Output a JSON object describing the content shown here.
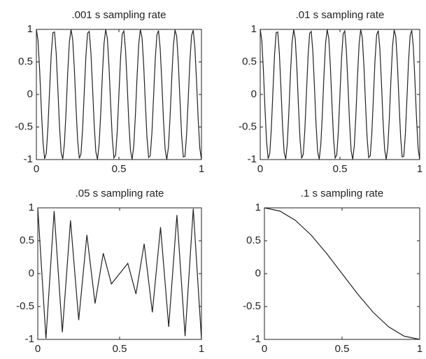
{
  "chart_data": [
    {
      "type": "line",
      "title": ".001 s sampling rate",
      "color": "#222222",
      "xlim": [
        0,
        1
      ],
      "ylim": [
        -1,
        1
      ],
      "xticks": [
        0,
        0.5,
        1
      ],
      "yticks": [
        -1,
        -0.5,
        0,
        0.5,
        1
      ],
      "x": [
        0,
        0.01,
        0.02,
        0.03,
        0.04,
        0.05,
        0.06,
        0.07,
        0.08,
        0.09,
        0.1,
        0.11,
        0.12,
        0.13,
        0.14,
        0.15,
        0.16,
        0.17,
        0.18,
        0.19,
        0.2,
        0.21,
        0.22,
        0.23,
        0.24,
        0.25,
        0.26,
        0.27,
        0.28,
        0.29,
        0.3,
        0.31,
        0.32,
        0.33,
        0.34,
        0.35,
        0.36,
        0.37,
        0.38,
        0.39,
        0.4,
        0.41,
        0.42,
        0.43,
        0.44,
        0.45,
        0.46,
        0.47,
        0.48,
        0.49,
        0.5,
        0.51,
        0.52,
        0.53,
        0.54,
        0.55,
        0.56,
        0.57,
        0.58,
        0.59,
        0.6,
        0.61,
        0.62,
        0.63,
        0.64,
        0.65,
        0.66,
        0.67,
        0.68,
        0.69,
        0.7,
        0.71,
        0.72,
        0.73,
        0.74,
        0.75,
        0.76,
        0.77,
        0.78,
        0.79,
        0.8,
        0.81,
        0.82,
        0.83,
        0.84,
        0.85,
        0.86,
        0.87,
        0.88,
        0.89,
        0.9,
        0.91,
        0.92,
        0.93,
        0.94,
        0.95,
        0.96,
        0.97,
        0.98,
        0.99,
        1
      ],
      "values": [
        1,
        0.827,
        0.368,
        -0.218,
        -0.729,
        -0.988,
        -0.905,
        -0.509,
        0.063,
        0.613,
        0.951,
        0.96,
        0.637,
        0.094,
        -0.482,
        -0.891,
        -0.992,
        -0.75,
        -0.249,
        0.339,
        0.809,
        1,
        0.844,
        0.397,
        -0.187,
        -0.707,
        -0.982,
        -0.918,
        -0.536,
        0.031,
        0.588,
        0.941,
        0.969,
        0.661,
        0.125,
        -0.454,
        -0.876,
        -0.996,
        -0.771,
        -0.279,
        0.309,
        0.79,
        0.998,
        0.861,
        0.426,
        -0.156,
        -0.685,
        -0.976,
        -0.93,
        -0.562,
        0,
        0.562,
        0.93,
        0.976,
        0.685,
        0.156,
        -0.426,
        -0.861,
        -0.998,
        -0.79,
        -0.309,
        0.279,
        0.771,
        0.996,
        0.876,
        0.454,
        -0.125,
        -0.661,
        -0.969,
        -0.941,
        -0.588,
        -0.031,
        0.536,
        0.918,
        0.982,
        0.707,
        0.187,
        -0.397,
        -0.844,
        -1,
        -0.809,
        -0.339,
        0.249,
        0.75,
        0.992,
        0.891,
        0.482,
        -0.094,
        -0.637,
        -0.96,
        -0.951,
        -0.613,
        -0.063,
        0.509,
        0.905,
        0.988,
        0.729,
        0.218,
        -0.368,
        -0.827,
        -1
      ]
    },
    {
      "type": "line",
      "title": ".01 s sampling rate",
      "color": "#222222",
      "xlim": [
        0,
        1
      ],
      "ylim": [
        -1,
        1
      ],
      "xticks": [
        0,
        0.5,
        1
      ],
      "yticks": [
        -1,
        -0.5,
        0,
        0.5,
        1
      ],
      "x": [
        0,
        0.01,
        0.02,
        0.03,
        0.04,
        0.05,
        0.06,
        0.07,
        0.08,
        0.09,
        0.1,
        0.11,
        0.12,
        0.13,
        0.14,
        0.15,
        0.16,
        0.17,
        0.18,
        0.19,
        0.2,
        0.21,
        0.22,
        0.23,
        0.24,
        0.25,
        0.26,
        0.27,
        0.28,
        0.29,
        0.3,
        0.31,
        0.32,
        0.33,
        0.34,
        0.35,
        0.36,
        0.37,
        0.38,
        0.39,
        0.4,
        0.41,
        0.42,
        0.43,
        0.44,
        0.45,
        0.46,
        0.47,
        0.48,
        0.49,
        0.5,
        0.51,
        0.52,
        0.53,
        0.54,
        0.55,
        0.56,
        0.57,
        0.58,
        0.59,
        0.6,
        0.61,
        0.62,
        0.63,
        0.64,
        0.65,
        0.66,
        0.67,
        0.68,
        0.69,
        0.7,
        0.71,
        0.72,
        0.73,
        0.74,
        0.75,
        0.76,
        0.77,
        0.78,
        0.79,
        0.8,
        0.81,
        0.82,
        0.83,
        0.84,
        0.85,
        0.86,
        0.87,
        0.88,
        0.89,
        0.9,
        0.91,
        0.92,
        0.93,
        0.94,
        0.95,
        0.96,
        0.97,
        0.98,
        0.99,
        1
      ],
      "values": [
        1,
        0.827,
        0.368,
        -0.218,
        -0.729,
        -0.988,
        -0.905,
        -0.509,
        0.063,
        0.613,
        0.951,
        0.96,
        0.637,
        0.094,
        -0.482,
        -0.891,
        -0.992,
        -0.75,
        -0.249,
        0.339,
        0.809,
        1,
        0.844,
        0.397,
        -0.187,
        -0.707,
        -0.982,
        -0.918,
        -0.536,
        0.031,
        0.588,
        0.941,
        0.969,
        0.661,
        0.125,
        -0.454,
        -0.876,
        -0.996,
        -0.771,
        -0.279,
        0.309,
        0.79,
        0.998,
        0.861,
        0.426,
        -0.156,
        -0.685,
        -0.976,
        -0.93,
        -0.562,
        0,
        0.562,
        0.93,
        0.976,
        0.685,
        0.156,
        -0.426,
        -0.861,
        -0.998,
        -0.79,
        -0.309,
        0.279,
        0.771,
        0.996,
        0.876,
        0.454,
        -0.125,
        -0.661,
        -0.969,
        -0.941,
        -0.588,
        -0.031,
        0.536,
        0.918,
        0.982,
        0.707,
        0.187,
        -0.397,
        -0.844,
        -1,
        -0.809,
        -0.339,
        0.249,
        0.75,
        0.992,
        0.891,
        0.482,
        -0.094,
        -0.637,
        -0.96,
        -0.951,
        -0.613,
        -0.063,
        0.509,
        0.905,
        0.988,
        0.729,
        0.218,
        -0.368,
        -0.827,
        -1
      ]
    },
    {
      "type": "line",
      "title": ".05 s sampling rate",
      "color": "#222222",
      "xlim": [
        0,
        1
      ],
      "ylim": [
        -1,
        1
      ],
      "xticks": [
        0,
        0.5,
        1
      ],
      "yticks": [
        -1,
        -0.5,
        0,
        0.5,
        1
      ],
      "x": [
        0,
        0.05,
        0.1,
        0.15,
        0.2,
        0.25,
        0.3,
        0.35,
        0.4,
        0.45,
        0.5,
        0.55,
        0.6,
        0.65,
        0.7,
        0.75,
        0.8,
        0.85,
        0.9,
        0.95,
        1
      ],
      "values": [
        1,
        -0.988,
        0.951,
        -0.891,
        0.809,
        -0.707,
        0.588,
        -0.454,
        0.309,
        -0.156,
        0,
        0.156,
        -0.309,
        0.454,
        -0.588,
        0.707,
        -0.809,
        0.891,
        -0.951,
        0.988,
        -1
      ]
    },
    {
      "type": "line",
      "title": ".1 s sampling rate",
      "color": "#222222",
      "xlim": [
        0,
        1
      ],
      "ylim": [
        -1,
        1
      ],
      "xticks": [
        0,
        0.5,
        1
      ],
      "yticks": [
        -1,
        -0.5,
        0,
        0.5,
        1
      ],
      "x": [
        0,
        0.1,
        0.2,
        0.3,
        0.4,
        0.5,
        0.6,
        0.7,
        0.8,
        0.9,
        1
      ],
      "values": [
        1,
        0.951,
        0.809,
        0.588,
        0.309,
        0,
        -0.309,
        -0.588,
        -0.809,
        -0.951,
        -1
      ]
    }
  ]
}
